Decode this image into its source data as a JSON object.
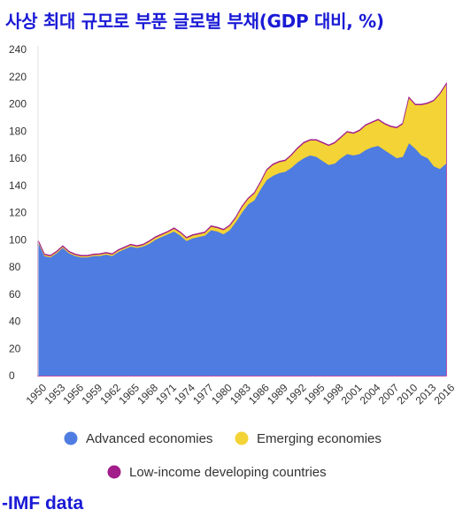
{
  "title": "사상 최대 규모로 부푼 글로벌 부채(GDP 대비, %)",
  "source": "-IMF data",
  "chart_data": {
    "type": "area",
    "stacked": true,
    "title": "사상 최대 규모로 부푼 글로벌 부채(GDP 대비, %)",
    "xlabel": "",
    "ylabel": "",
    "xlim": [
      1950,
      2016
    ],
    "ylim": [
      0,
      240
    ],
    "y_ticks": [
      0,
      20,
      40,
      60,
      80,
      100,
      120,
      140,
      160,
      180,
      200,
      220,
      240
    ],
    "x_ticks": [
      1950,
      1953,
      1956,
      1959,
      1962,
      1965,
      1968,
      1971,
      1974,
      1977,
      1980,
      1983,
      1986,
      1989,
      1992,
      1995,
      1998,
      2001,
      2004,
      2007,
      2010,
      2013,
      2016
    ],
    "grid": false,
    "legend_position": "bottom",
    "x": [
      1950,
      1951,
      1952,
      1953,
      1954,
      1955,
      1956,
      1957,
      1958,
      1959,
      1960,
      1961,
      1962,
      1963,
      1964,
      1965,
      1966,
      1967,
      1968,
      1969,
      1970,
      1971,
      1972,
      1973,
      1974,
      1975,
      1976,
      1977,
      1978,
      1979,
      1980,
      1981,
      1982,
      1983,
      1984,
      1985,
      1986,
      1987,
      1988,
      1989,
      1990,
      1991,
      1992,
      1993,
      1994,
      1995,
      1996,
      1997,
      1998,
      1999,
      2000,
      2001,
      2002,
      2003,
      2004,
      2005,
      2006,
      2007,
      2008,
      2009,
      2010,
      2011,
      2012,
      2013,
      2014,
      2015,
      2016
    ],
    "series": [
      {
        "name": "Advanced economies",
        "color": "#4e7ce0",
        "values": [
          98,
          88,
          87,
          90,
          94,
          90,
          88,
          87,
          87,
          88,
          88,
          89,
          88,
          91,
          93,
          95,
          94,
          95,
          97,
          100,
          102,
          104,
          106,
          103,
          99,
          101,
          102,
          103,
          107,
          106,
          104,
          107,
          113,
          120,
          126,
          129,
          137,
          144,
          147,
          149,
          150,
          153,
          157,
          160,
          162,
          161,
          158,
          155,
          156,
          160,
          163,
          162,
          163,
          166,
          168,
          169,
          166,
          163,
          160,
          161,
          171,
          167,
          162,
          160,
          154,
          152,
          156
        ]
      },
      {
        "name": "Emerging economies",
        "color": "#f3d335",
        "values": [
          0.8,
          0.8,
          0.8,
          0.8,
          0.8,
          0.8,
          0.8,
          0.8,
          0.8,
          0.8,
          1,
          1,
          1,
          1,
          1,
          1,
          1,
          1,
          1.5,
          1.5,
          1.5,
          1.5,
          2,
          2,
          2,
          2,
          2,
          2,
          2.5,
          2.5,
          3,
          3,
          3,
          4,
          4,
          5,
          5,
          7,
          8,
          8,
          8,
          9,
          10,
          11,
          11,
          12,
          13,
          14,
          15,
          15,
          16,
          16,
          17,
          18,
          18,
          19,
          19,
          20,
          22,
          24,
          33,
          32,
          37,
          40,
          48,
          55,
          58
        ]
      },
      {
        "name": "Low-income developing countries",
        "color": "#a21d8a",
        "values": [
          0.5,
          0.5,
          0.5,
          0.5,
          0.5,
          0.5,
          0.5,
          0.5,
          0.5,
          0.5,
          0.5,
          0.5,
          0.5,
          0.5,
          0.5,
          0.5,
          0.5,
          0.5,
          0.5,
          0.5,
          0.5,
          0.5,
          0.5,
          0.5,
          0.5,
          0.5,
          0.5,
          0.5,
          0.5,
          0.5,
          0.5,
          0.5,
          0.5,
          0.5,
          0.5,
          0.5,
          0.5,
          0.5,
          0.5,
          0.5,
          0.5,
          0.5,
          0.5,
          0.5,
          0.5,
          0.5,
          0.5,
          0.5,
          0.5,
          0.5,
          0.5,
          0.5,
          0.5,
          0.5,
          0.5,
          0.5,
          0.5,
          0.5,
          0.5,
          0.5,
          0.5,
          0.5,
          0.5,
          0.5,
          0.5,
          0.5,
          0.5
        ]
      }
    ]
  }
}
